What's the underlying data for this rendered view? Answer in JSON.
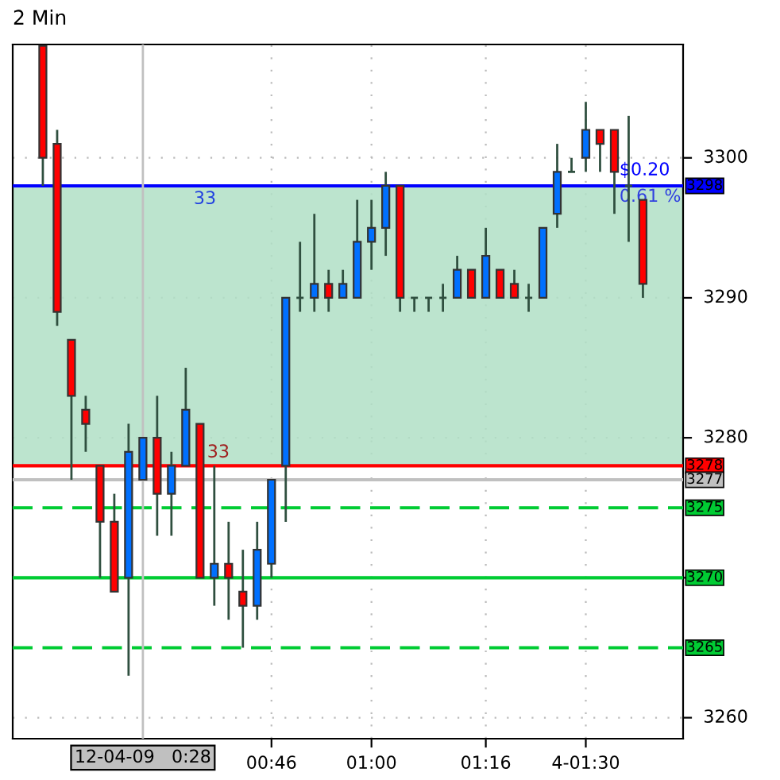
{
  "chart_data": {
    "type": "candlestick",
    "title": "2 Min",
    "x": [
      0.2333,
      0.2667,
      0.3,
      0.3333,
      0.3667,
      0.4,
      0.4333,
      0.4667,
      0.5,
      0.5333,
      0.5667,
      0.6,
      0.6333,
      0.6667,
      0.7,
      0.7333,
      0.7667,
      0.8,
      0.8333,
      0.8667,
      0.9,
      0.9333,
      0.9667,
      1.0,
      1.0333,
      1.0667,
      1.1,
      1.1333,
      1.1667,
      1.2,
      1.2333,
      1.2667,
      1.3,
      1.3333,
      1.3667,
      1.4,
      1.4333,
      1.4667,
      1.5,
      1.5333,
      1.5667,
      1.6,
      1.6333
    ],
    "ohlc": [
      [
        3308,
        3308,
        3298,
        3300
      ],
      [
        3301,
        3302,
        3288,
        3289
      ],
      [
        3287,
        3287,
        3277,
        3283
      ],
      [
        3282,
        3283,
        3279,
        3281
      ],
      [
        3278,
        3278,
        3270,
        3274
      ],
      [
        3274,
        3276,
        3269,
        3269
      ],
      [
        3270,
        3281,
        3263,
        3279
      ],
      [
        3277,
        3280,
        3277,
        3280
      ],
      [
        3280,
        3283,
        3273,
        3276
      ],
      [
        3276,
        3279,
        3273,
        3278
      ],
      [
        3278,
        3285,
        3278,
        3282
      ],
      [
        3281,
        3281,
        3270,
        3270
      ],
      [
        3270,
        3278,
        3268,
        3271
      ],
      [
        3271,
        3274,
        3267,
        3270
      ],
      [
        3269,
        3272,
        3265,
        3268
      ],
      [
        3268,
        3274,
        3267,
        3272
      ],
      [
        3271,
        3277,
        3270,
        3277
      ],
      [
        3278,
        3290,
        3274,
        3290
      ],
      [
        3290,
        3294,
        3289,
        3290
      ],
      [
        3290,
        3296,
        3289,
        3291
      ],
      [
        3291,
        3292,
        3289,
        3290
      ],
      [
        3290,
        3292,
        3290,
        3291
      ],
      [
        3290,
        3297,
        3290,
        3294
      ],
      [
        3294,
        3297,
        3292,
        3295
      ],
      [
        3295,
        3299,
        3293,
        3298
      ],
      [
        3298,
        3298,
        3289,
        3290
      ],
      [
        3290,
        3290,
        3289,
        3290
      ],
      [
        3290,
        3290,
        3289,
        3290
      ],
      [
        3290,
        3291,
        3289,
        3290
      ],
      [
        3290,
        3293,
        3290,
        3292
      ],
      [
        3292,
        3292,
        3290,
        3290
      ],
      [
        3290,
        3295,
        3290,
        3293
      ],
      [
        3292,
        3292,
        3290,
        3290
      ],
      [
        3291,
        3292,
        3290,
        3290
      ],
      [
        3290,
        3291,
        3289,
        3290
      ],
      [
        3290,
        3295,
        3290,
        3295
      ],
      [
        3296,
        3301,
        3295,
        3299
      ],
      [
        3299,
        3300,
        3299,
        3299
      ],
      [
        3300,
        3304,
        3299,
        3302
      ],
      [
        3302,
        3302,
        3299,
        3301
      ],
      [
        3302,
        3302,
        3296,
        3299
      ],
      [
        3298,
        3303,
        3294,
        3298
      ],
      [
        3297,
        3297,
        3290,
        3291
      ]
    ],
    "colors": [
      "#ff0000",
      "#ff0000",
      "#ff0000",
      "#ff0000",
      "#ff0000",
      "#ff0000",
      "#0070ff",
      "#0070ff",
      "#ff0000",
      "#0070ff",
      "#0070ff",
      "#ff0000",
      "#0070ff",
      "#ff0000",
      "#ff0000",
      "#0070ff",
      "#0070ff",
      "#0070ff",
      "#2f4f3f",
      "#0070ff",
      "#ff0000",
      "#0070ff",
      "#0070ff",
      "#0070ff",
      "#0070ff",
      "#ff0000",
      "#2f4f3f",
      "#2f4f3f",
      "#2f4f3f",
      "#0070ff",
      "#ff0000",
      "#0070ff",
      "#ff0000",
      "#ff0000",
      "#2f4f3f",
      "#0070ff",
      "#0070ff",
      "#2f4f3f",
      "#0070ff",
      "#ff0000",
      "#ff0000",
      "#2f4f3f",
      "#ff0000"
    ],
    "xlim": [
      0.163,
      1.727
    ],
    "ylim": [
      3258.5,
      3308.1
    ],
    "xticks": [
      {
        "value": 0.7667,
        "label": "00:46"
      },
      {
        "value": 1.0,
        "label": "01:00"
      },
      {
        "value": 1.2667,
        "label": "01:16"
      },
      {
        "value": 1.5,
        "label": "4-01:30"
      }
    ],
    "yticks": [
      3300,
      3290,
      3280,
      {
        "value": 3270,
        "label": null
      },
      3260
    ],
    "grid": true,
    "bands": [
      {
        "axis": "y",
        "from": 3278,
        "to": 3298,
        "color": "#b0dfc6"
      }
    ],
    "ref_lines": [
      {
        "axis": "y",
        "value": 3298,
        "label": "3298",
        "color": "#0000ff",
        "line_style": "solid"
      },
      {
        "axis": "y",
        "value": 3278,
        "label": "3278",
        "color": "#ff0000",
        "line_style": "solid"
      },
      {
        "axis": "y",
        "value": 3277,
        "label": "3277",
        "color": "#c0c0c0",
        "line_style": "solid"
      },
      {
        "axis": "y",
        "value": 3275,
        "label": "3275",
        "color": "#00cc33",
        "line_style": "dashed"
      },
      {
        "axis": "y",
        "value": 3270,
        "label": "3270",
        "color": "#00cc33",
        "line_style": "solid"
      },
      {
        "axis": "y",
        "value": 3265,
        "label": "3265",
        "color": "#00cc33",
        "line_style": "dashed"
      },
      {
        "axis": "x",
        "value": 0.4667,
        "label": "12-04-09   0:28",
        "color": "#c0c0c0",
        "line_style": "solid"
      }
    ],
    "annotations": [
      "33",
      "33",
      "$0.20",
      "0.61 %"
    ]
  }
}
